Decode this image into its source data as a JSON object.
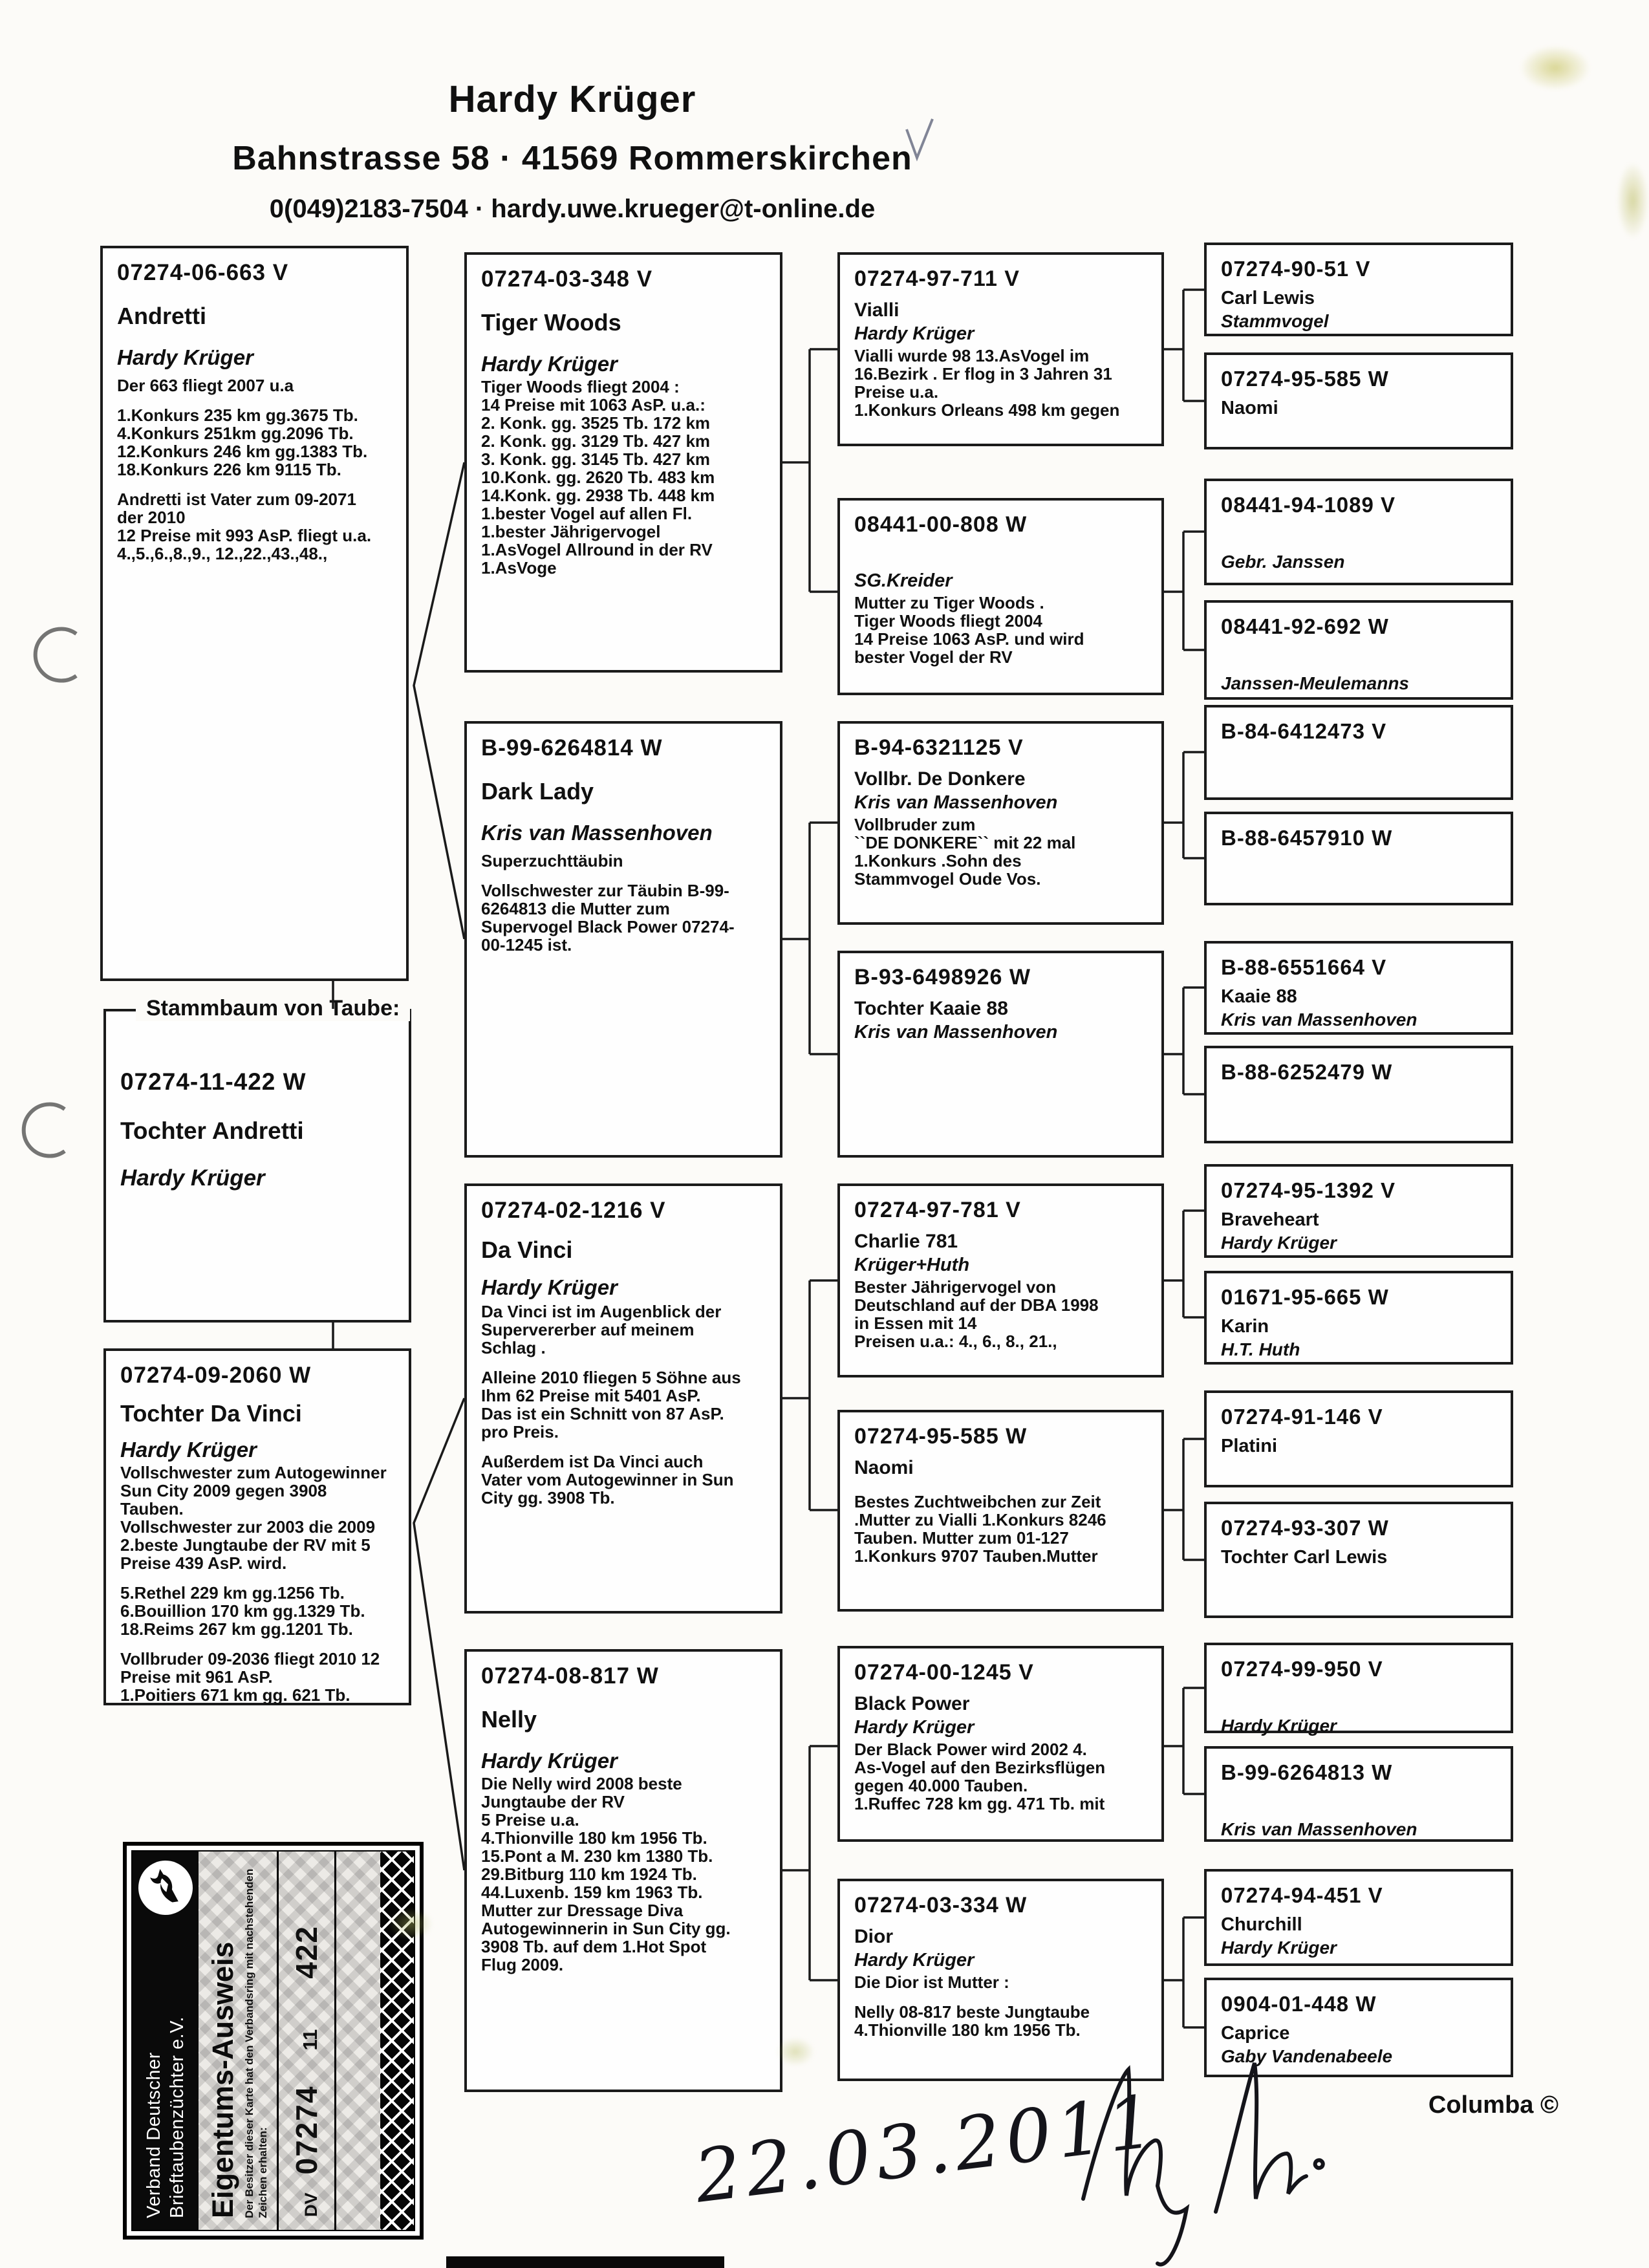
{
  "header": {
    "name": "Hardy Krüger",
    "address": "Bahnstrasse 58  ·  41569 Rommerskirchen",
    "contact": "0(049)2183-7504  ·  hardy.uwe.krueger@t-online.de"
  },
  "tree_label": "Stammbaum von Taube:",
  "subject": {
    "ring": "07274-11-422 W",
    "name": "Tochter Andretti",
    "breeder": "Hardy Krüger"
  },
  "father": {
    "ring": "07274-06-663 V",
    "name": "Andretti",
    "breeder": "Hardy Krüger",
    "lines": [
      "Der 663 fliegt 2007 u.a",
      "",
      "1.Konkurs 235 km gg.3675 Tb.",
      "4.Konkurs 251km gg.2096 Tb.",
      "12.Konkurs 246 km gg.1383 Tb.",
      "18.Konkurs 226 km 9115 Tb.",
      "",
      "Andretti ist Vater zum 09-2071",
      "der 2010",
      "12 Preise mit 993 AsP. fliegt u.a.",
      "4.,5.,6.,8.,9., 12.,22.,43.,48.,"
    ]
  },
  "mother": {
    "ring": "07274-09-2060 W",
    "name": "Tochter Da Vinci",
    "breeder": "Hardy Krüger",
    "lines": [
      "Vollschwester zum Autogewinner",
      "Sun City 2009 gegen 3908",
      "Tauben.",
      "Vollschwester zur 2003 die 2009",
      "2.beste Jungtaube der RV mit  5",
      "Preise 439 AsP. wird.",
      "",
      "5.Rethel 229 km gg.1256 Tb.",
      "6.Bouillion 170 km gg.1329 Tb.",
      "18.Reims 267 km gg.1201 Tb.",
      "",
      "Vollbruder 09-2036 fliegt 2010 12",
      "Preise mit 961 AsP.",
      "1.Poitiers 671 km gg. 621 Tb."
    ]
  },
  "grandparents": [
    {
      "ring": "07274-03-348 V",
      "name": "Tiger Woods",
      "breeder": "Hardy Krüger",
      "lines": [
        "Tiger Woods fliegt 2004 :",
        "14 Preise mit 1063 AsP. u.a.:",
        "2. Konk. gg. 3525 Tb. 172 km",
        "2. Konk. gg. 3129 Tb. 427 km",
        "3. Konk. gg. 3145 Tb. 427 km",
        "10.Konk. gg. 2620 Tb. 483 km",
        "14.Konk. gg. 2938 Tb. 448 km",
        "1.bester Vogel auf allen Fl.",
        "1.bester Jährigervogel",
        "1.AsVogel Allround in der RV",
        "1.AsVoge"
      ]
    },
    {
      "ring": "B-99-6264814 W",
      "name": "Dark Lady",
      "breeder": "Kris van Massenhoven",
      "lines": [
        "Superzuchttäubin",
        "",
        "Vollschwester zur Täubin B-99-",
        "6264813 die Mutter zum",
        "Supervogel Black Power 07274-",
        "00-1245 ist."
      ]
    },
    {
      "ring": "07274-02-1216 V",
      "name": "Da Vinci",
      "breeder": "Hardy Krüger",
      "lines": [
        "Da Vinci ist im Augenblick der",
        "Supervererber auf meinem",
        "Schlag .",
        "",
        "Alleine 2010 fliegen 5 Söhne aus",
        "Ihm 62 Preise mit  5401  AsP.",
        "Das ist ein Schnitt von 87 AsP.",
        "pro Preis.",
        "",
        "Außerdem ist Da Vinci auch",
        "Vater vom Autogewinner in Sun",
        "City gg. 3908 Tb."
      ]
    },
    {
      "ring": "07274-08-817 W",
      "name": "Nelly",
      "breeder": "Hardy Krüger",
      "lines": [
        "Die Nelly wird 2008 beste",
        "Jungtaube der RV",
        "5 Preise u.a.",
        "4.Thionville 180 km 1956 Tb.",
        "15.Pont a M. 230 km 1380 Tb.",
        "29.Bitburg 110 km 1924 Tb.",
        "44.Luxenb. 159 km 1963 Tb.",
        "Mutter zur Dressage Diva",
        "Autogewinnerin in Sun City gg.",
        "3908 Tb. auf dem 1.Hot Spot",
        "Flug 2009."
      ]
    }
  ],
  "great_grandparents": [
    {
      "ring": "07274-97-711 V",
      "name": "Vialli",
      "breeder": "Hardy Krüger",
      "lines": [
        "Vialli wurde 98  13.AsVogel im",
        "16.Bezirk . Er flog in 3 Jahren 31",
        "Preise u.a.",
        "1.Konkurs Orleans 498 km gegen"
      ]
    },
    {
      "ring": "08441-00-808 W",
      "name": "",
      "breeder": "SG.Kreider",
      "lines": [
        "Mutter zu Tiger Woods .",
        "Tiger Woods fliegt 2004",
        "14 Preise 1063 AsP. und wird",
        "bester Vogel der RV"
      ]
    },
    {
      "ring": "B-94-6321125 V",
      "name": "Vollbr.  De Donkere",
      "breeder": "Kris van Massenhoven",
      "lines": [
        "Vollbruder zum",
        "``DE DONKERE`` mit 22 mal",
        "1.Konkurs .Sohn des",
        "Stammvogel Oude Vos."
      ]
    },
    {
      "ring": "B-93-6498926 W",
      "name": "Tochter Kaaie 88",
      "breeder": "Kris van Massenhoven",
      "lines": []
    },
    {
      "ring": "07274-97-781 V",
      "name": "Charlie 781",
      "breeder": "Krüger+Huth",
      "lines": [
        "Bester Jährigervogel von",
        "Deutschland auf der DBA 1998",
        "in Essen mit 14",
        "Preisen u.a.: 4., 6., 8., 21.,"
      ]
    },
    {
      "ring": "07274-95-585 W",
      "name": "Naomi",
      "breeder": "",
      "lines": [
        "",
        "Bestes Zuchtweibchen zur Zeit",
        ".Mutter zu Vialli 1.Konkurs 8246",
        "Tauben. Mutter zum 01-127",
        "1.Konkurs 9707 Tauben.Mutter"
      ]
    },
    {
      "ring": "07274-00-1245 V",
      "name": "Black Power",
      "breeder": "Hardy Krüger",
      "lines": [
        "Der Black Power wird 2002 4.",
        "As-Vogel auf den Bezirksflügen",
        "gegen 40.000 Tauben.",
        "1.Ruffec 728 km gg. 471 Tb. mit"
      ]
    },
    {
      "ring": "07274-03-334 W",
      "name": "Dior",
      "breeder": "Hardy Krüger",
      "lines": [
        "Die Dior ist Mutter :",
        "",
        "Nelly 08-817 beste Jungtaube",
        "4.Thionville 180 km 1956 Tb."
      ]
    }
  ],
  "gg_grandparents": [
    {
      "ring": "07274-90-51 V",
      "name": "Carl Lewis",
      "breeder": "Stammvogel"
    },
    {
      "ring": "07274-95-585 W",
      "name": "Naomi",
      "breeder": ""
    },
    {
      "ring": "08441-94-1089 V",
      "name": "",
      "breeder": "Gebr. Janssen"
    },
    {
      "ring": "08441-92-692 W",
      "name": "",
      "breeder": "Janssen-Meulemanns"
    },
    {
      "ring": "B-84-6412473 V",
      "name": "",
      "breeder": ""
    },
    {
      "ring": "B-88-6457910 W",
      "name": "",
      "breeder": ""
    },
    {
      "ring": "B-88-6551664 V",
      "name": "Kaaie 88",
      "breeder": "Kris van Massenhoven"
    },
    {
      "ring": "B-88-6252479 W",
      "name": "",
      "breeder": ""
    },
    {
      "ring": "07274-95-1392 V",
      "name": "Braveheart",
      "breeder": "Hardy Krüger"
    },
    {
      "ring": "01671-95-665 W",
      "name": "Karin",
      "breeder": "H.T. Huth"
    },
    {
      "ring": "07274-91-146 V",
      "name": "Platini",
      "breeder": ""
    },
    {
      "ring": "07274-93-307 W",
      "name": "Tochter Carl Lewis",
      "breeder": ""
    },
    {
      "ring": "07274-99-950 V",
      "name": "",
      "breeder": "Hardy Krüger"
    },
    {
      "ring": "B-99-6264813 W",
      "name": "",
      "breeder": "Kris van Massenhoven"
    },
    {
      "ring": "07274-94-451 V",
      "name": "Churchill",
      "breeder": "Hardy Krüger"
    },
    {
      "ring": "0904-01-448 W",
      "name": "Caprice",
      "breeder": "Gaby Vandenabeele"
    }
  ],
  "card": {
    "org": [
      "Verband Deutscher",
      "Brieftaubenzüchter e.V."
    ],
    "title": "Eigentums-Ausweis",
    "subtitle": "Der Besitzer dieser Karte hat den Verbandsring mit nachstehenden Zeichen erhalten:",
    "ring_prefix": "DV",
    "ring_club": "07274",
    "ring_year": "11",
    "ring_number": "422"
  },
  "annotations": {
    "columba": "Columba ©",
    "date": "22.03.2011"
  }
}
